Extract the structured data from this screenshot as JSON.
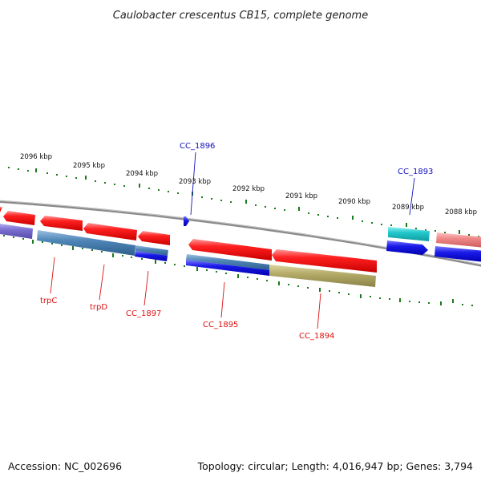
{
  "title": "Caulobacter crescentus CB15, complete genome",
  "footer": {
    "accession": "Accession: NC_002696",
    "summary": "Topology: circular; Length: 4,016,947 bp; Genes: 3,794"
  },
  "colors": {
    "red": "#ee1111",
    "blue": "#1111dd",
    "steel": "#4f86b8",
    "olive": "#b5ac6a",
    "cyan": "#22c8cc",
    "pink": "#ef8888",
    "violet": "#7a6ed0",
    "backbone": "#888888",
    "tick": "#1b7a1b",
    "label_red": "#dd1111",
    "label_blue": "#1111bb"
  },
  "ticks": [
    {
      "kbp": 2096,
      "label": "2096 kbp"
    },
    {
      "kbp": 2095,
      "label": "2095 kbp"
    },
    {
      "kbp": 2094,
      "label": "2094 kbp"
    },
    {
      "kbp": 2093,
      "label": "2093 kbp"
    },
    {
      "kbp": 2092,
      "label": "2092 kbp"
    },
    {
      "kbp": 2091,
      "label": "2091 kbp"
    },
    {
      "kbp": 2090,
      "label": "2090 kbp"
    },
    {
      "kbp": 2089,
      "label": "2089 kbp"
    },
    {
      "kbp": 2088,
      "label": "2088 kbp"
    }
  ],
  "labels": {
    "trpC": "trpC",
    "trpD": "trpD",
    "cc1897": "CC_1897",
    "cc1895": "CC_1895",
    "cc1894": "CC_1894",
    "cc1896": "CC_1896",
    "cc1893": "CC_1893"
  }
}
